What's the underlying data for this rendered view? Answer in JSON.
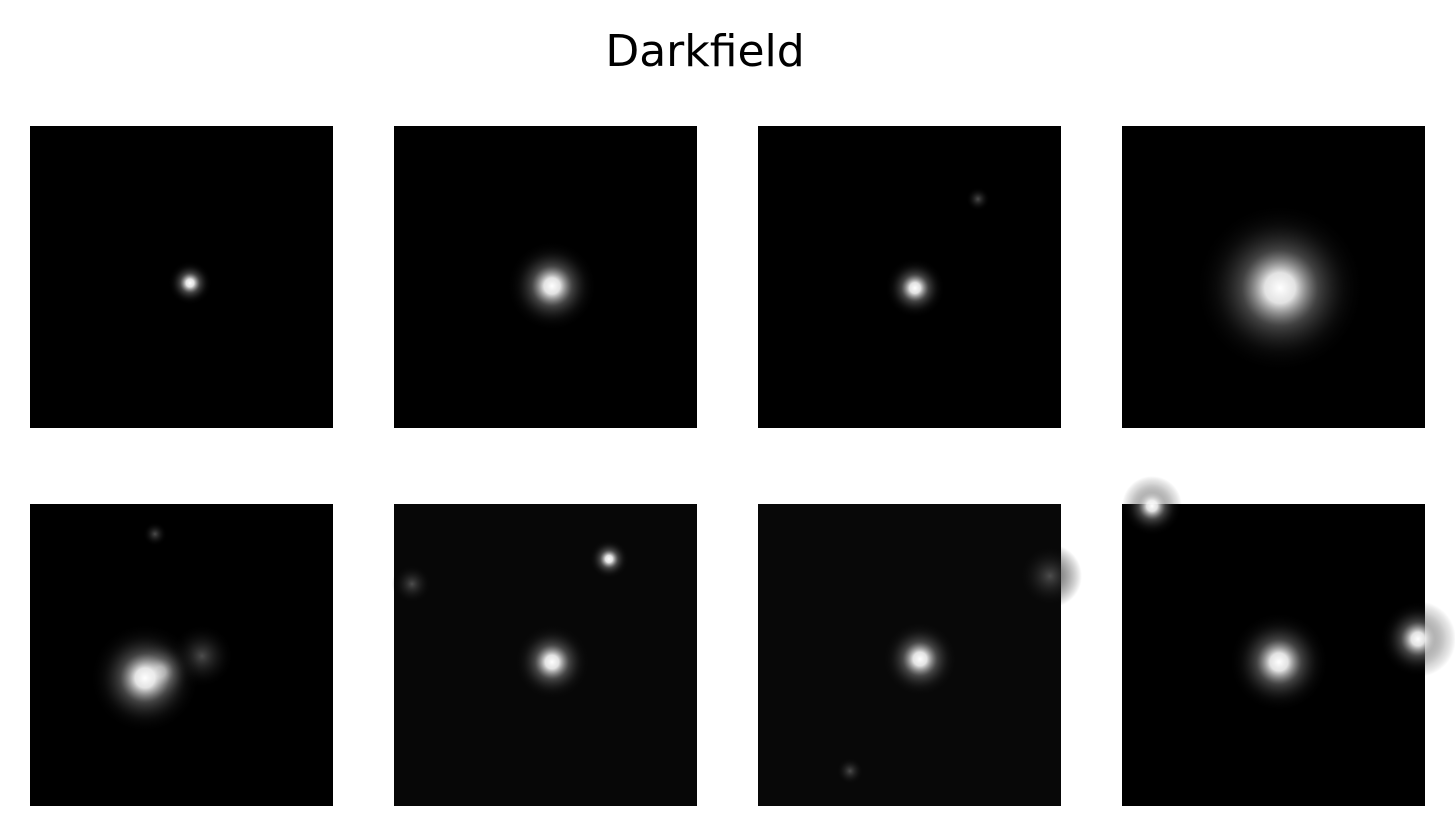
{
  "title": "Darkfield"
}
